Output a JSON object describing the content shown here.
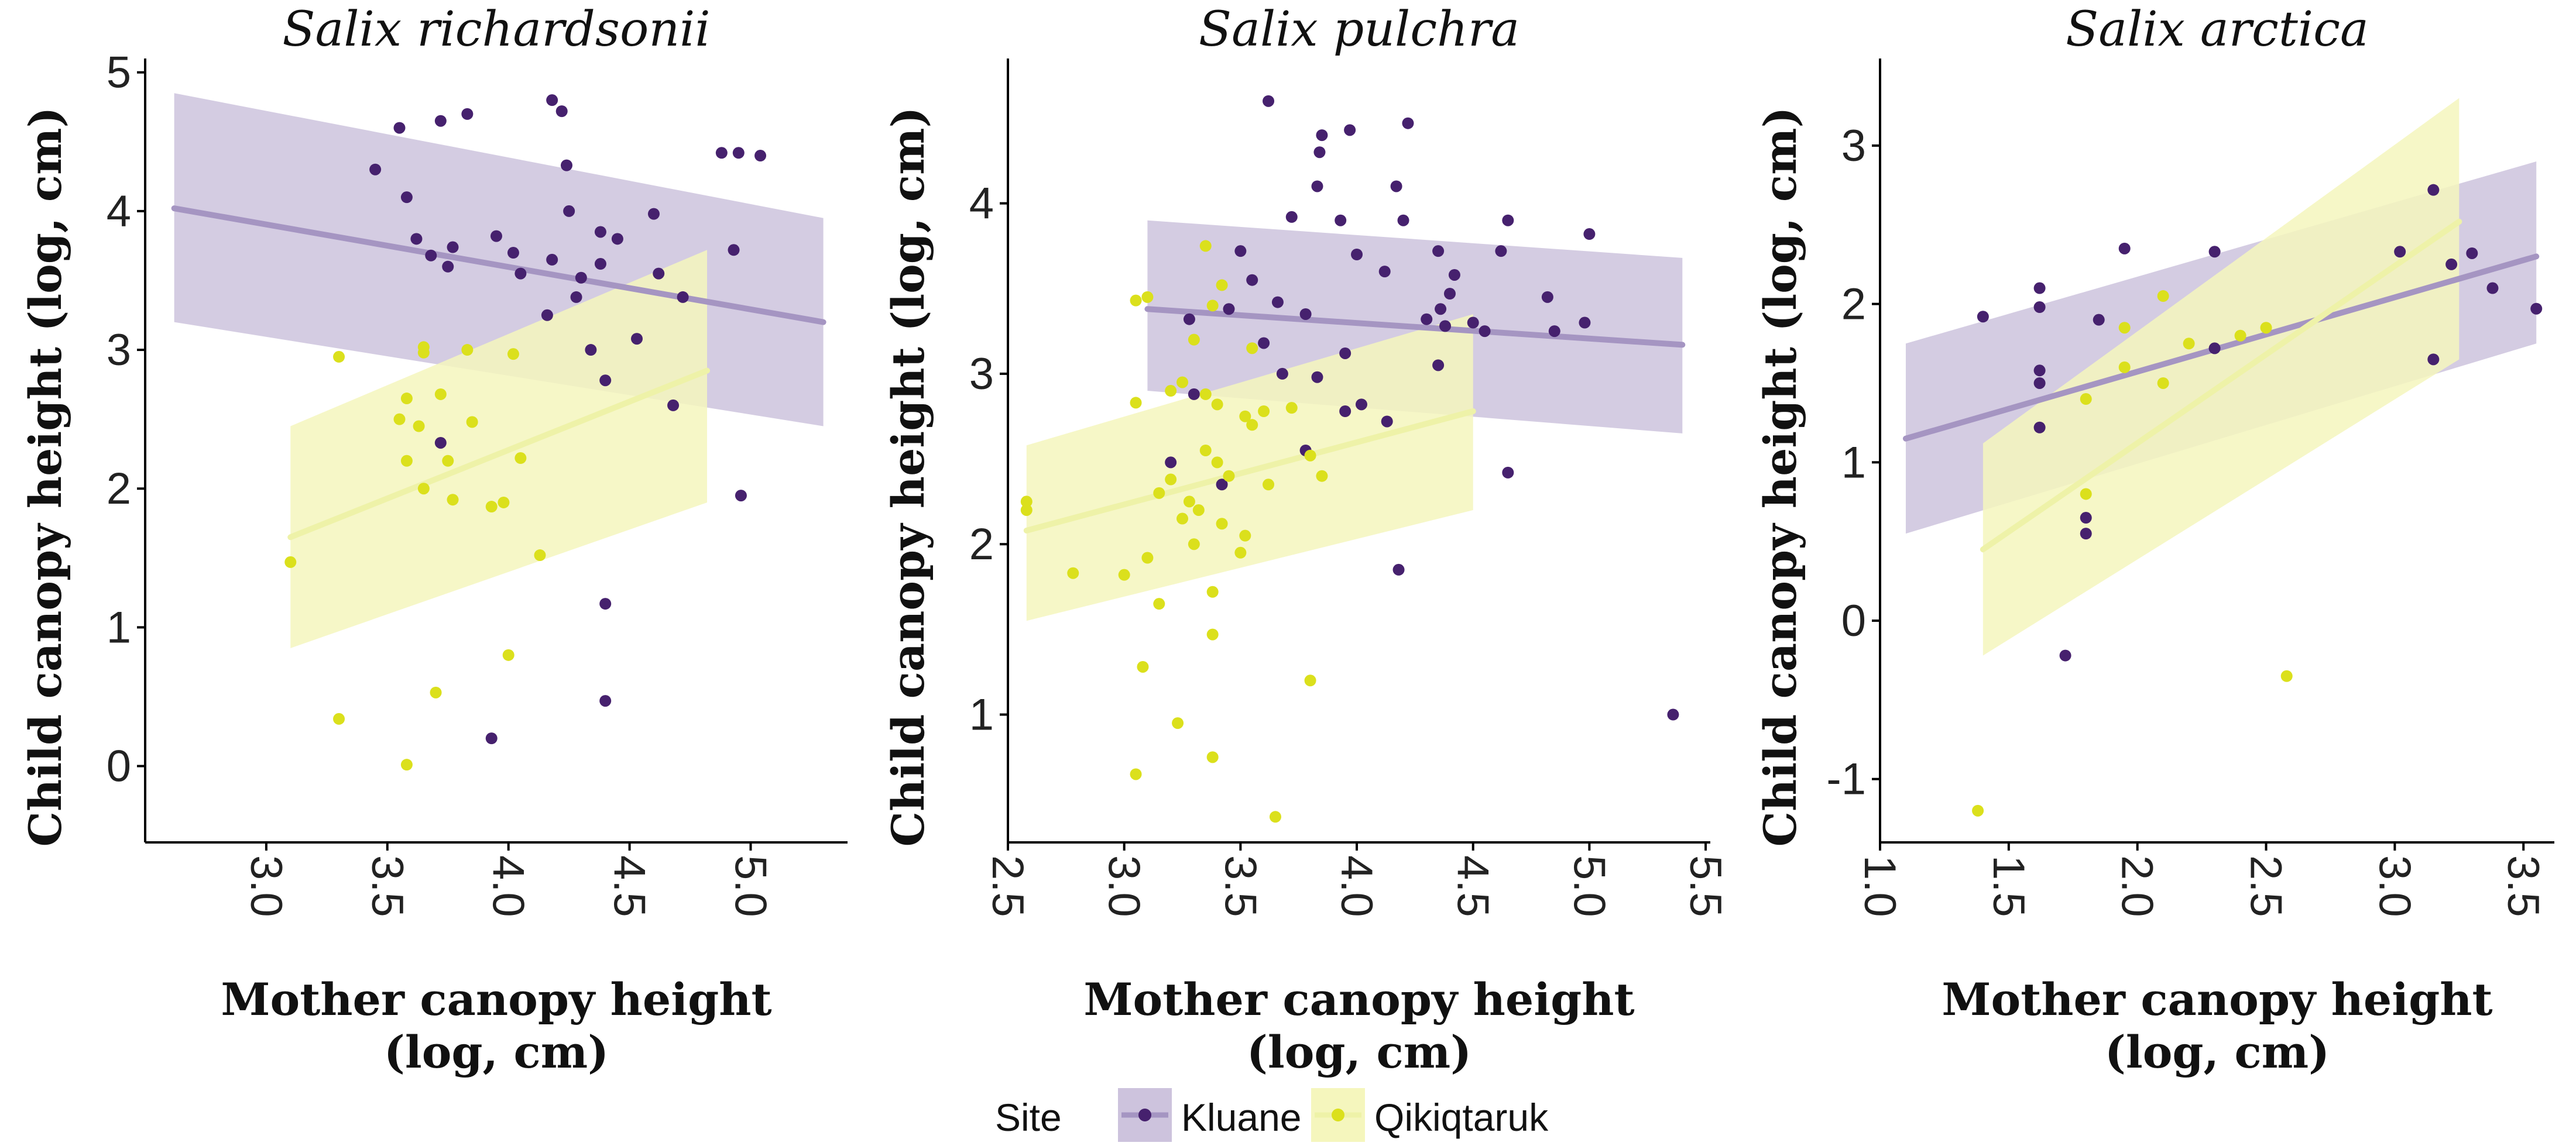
{
  "colors": {
    "Kluane": {
      "point": "#46216e",
      "line": "#a595c2",
      "band": "#cdc3dd"
    },
    "Qikiqtaruk": {
      "point": "#dbe01c",
      "line": "#eef2a8",
      "band": "#f5f6bd"
    },
    "axis": "#000000"
  },
  "legend": {
    "title": "Site",
    "entries": [
      "Kluane",
      "Qikiqtaruk"
    ],
    "placement": "bottom"
  },
  "chart_data": [
    {
      "type": "scatter",
      "title": "Salix richardsonii",
      "xlabel": "Mother canopy height\n(log, cm)",
      "ylabel": "Child canopy height (log, cm)",
      "xlim": [
        2.5,
        5.4
      ],
      "ylim": [
        -0.55,
        5.1
      ],
      "xticks": [
        "3.0",
        "3.5",
        "4.0",
        "4.5",
        "5.0"
      ],
      "yticks": [
        "0",
        "1",
        "2",
        "3",
        "4",
        "5"
      ],
      "series": [
        {
          "name": "Kluane",
          "points": [
            [
              3.55,
              4.6
            ],
            [
              3.72,
              4.65
            ],
            [
              3.83,
              4.7
            ],
            [
              4.18,
              4.8
            ],
            [
              4.22,
              4.72
            ],
            [
              3.45,
              4.3
            ],
            [
              4.24,
              4.33
            ],
            [
              3.58,
              4.1
            ],
            [
              4.95,
              4.42
            ],
            [
              4.88,
              4.42
            ],
            [
              5.04,
              4.4
            ],
            [
              3.95,
              3.82
            ],
            [
              4.25,
              4.0
            ],
            [
              4.45,
              3.8
            ],
            [
              3.62,
              3.8
            ],
            [
              3.77,
              3.74
            ],
            [
              4.38,
              3.62
            ],
            [
              4.02,
              3.7
            ],
            [
              4.18,
              3.65
            ],
            [
              3.68,
              3.68
            ],
            [
              3.75,
              3.6
            ],
            [
              4.05,
              3.55
            ],
            [
              4.3,
              3.52
            ],
            [
              4.62,
              3.55
            ],
            [
              4.38,
              3.85
            ],
            [
              4.6,
              3.98
            ],
            [
              4.93,
              3.72
            ],
            [
              4.72,
              3.38
            ],
            [
              4.28,
              3.38
            ],
            [
              4.16,
              3.25
            ],
            [
              4.53,
              3.08
            ],
            [
              4.34,
              3.0
            ],
            [
              4.4,
              2.78
            ],
            [
              4.68,
              2.6
            ],
            [
              3.72,
              2.33
            ],
            [
              4.96,
              1.95
            ],
            [
              4.4,
              1.17
            ],
            [
              4.4,
              0.47
            ],
            [
              3.93,
              0.2
            ]
          ],
          "fit_x": [
            2.62,
            5.3
          ],
          "fit_y": [
            4.02,
            3.2
          ],
          "ci_lower": [
            3.2,
            2.45
          ],
          "ci_upper": [
            4.85,
            3.95
          ]
        },
        {
          "name": "Qikiqtaruk",
          "points": [
            [
              3.1,
              1.47
            ],
            [
              3.3,
              2.95
            ],
            [
              3.65,
              2.98
            ],
            [
              3.65,
              3.02
            ],
            [
              3.83,
              3.0
            ],
            [
              4.02,
              2.97
            ],
            [
              3.58,
              2.65
            ],
            [
              3.72,
              2.68
            ],
            [
              3.55,
              2.5
            ],
            [
              3.63,
              2.45
            ],
            [
              3.58,
              2.2
            ],
            [
              3.75,
              2.2
            ],
            [
              3.85,
              2.48
            ],
            [
              4.05,
              2.22
            ],
            [
              3.65,
              2.0
            ],
            [
              3.77,
              1.92
            ],
            [
              3.93,
              1.87
            ],
            [
              3.98,
              1.9
            ],
            [
              4.13,
              1.52
            ],
            [
              4.0,
              0.8
            ],
            [
              3.7,
              0.53
            ],
            [
              3.3,
              0.34
            ],
            [
              3.58,
              0.01
            ]
          ],
          "fit_x": [
            3.1,
            4.82
          ],
          "fit_y": [
            1.65,
            2.85
          ],
          "ci_lower": [
            0.85,
            1.9
          ],
          "ci_upper": [
            2.45,
            3.72
          ]
        }
      ]
    },
    {
      "type": "scatter",
      "title": "Salix pulchra",
      "xlabel": "Mother canopy height\n(log, cm)",
      "ylabel": "Child canopy height (log, cm)",
      "xlim": [
        2.5,
        5.52
      ],
      "ylim": [
        0.25,
        4.85
      ],
      "xticks": [
        "2.5",
        "3.0",
        "3.5",
        "4.0",
        "4.5",
        "5.0",
        "5.5"
      ],
      "yticks": [
        "1",
        "2",
        "3",
        "4"
      ],
      "series": [
        {
          "name": "Kluane",
          "points": [
            [
              3.62,
              4.6
            ],
            [
              4.22,
              4.47
            ],
            [
              3.97,
              4.43
            ],
            [
              3.85,
              4.4
            ],
            [
              3.84,
              4.3
            ],
            [
              3.83,
              4.1
            ],
            [
              4.17,
              4.1
            ],
            [
              3.72,
              3.92
            ],
            [
              3.93,
              3.9
            ],
            [
              4.2,
              3.9
            ],
            [
              4.65,
              3.9
            ],
            [
              4.35,
              3.72
            ],
            [
              3.5,
              3.72
            ],
            [
              5.0,
              3.82
            ],
            [
              4.42,
              3.58
            ],
            [
              3.55,
              3.55
            ],
            [
              4.0,
              3.7
            ],
            [
              4.4,
              3.47
            ],
            [
              4.12,
              3.6
            ],
            [
              4.82,
              3.45
            ],
            [
              4.62,
              3.72
            ],
            [
              3.66,
              3.42
            ],
            [
              4.36,
              3.38
            ],
            [
              3.78,
              3.35
            ],
            [
              3.45,
              3.38
            ],
            [
              4.3,
              3.32
            ],
            [
              4.5,
              3.3
            ],
            [
              4.98,
              3.3
            ],
            [
              4.85,
              3.25
            ],
            [
              3.28,
              3.32
            ],
            [
              3.6,
              3.18
            ],
            [
              4.38,
              3.28
            ],
            [
              4.55,
              3.25
            ],
            [
              3.95,
              3.12
            ],
            [
              3.83,
              2.98
            ],
            [
              4.35,
              3.05
            ],
            [
              3.68,
              3.0
            ],
            [
              4.02,
              2.82
            ],
            [
              3.95,
              2.78
            ],
            [
              3.3,
              2.88
            ],
            [
              4.13,
              2.72
            ],
            [
              3.2,
              2.48
            ],
            [
              3.78,
              2.55
            ],
            [
              3.42,
              2.35
            ],
            [
              4.65,
              2.42
            ],
            [
              4.18,
              1.85
            ],
            [
              5.36,
              1.0
            ]
          ],
          "fit_x": [
            3.1,
            5.4
          ],
          "fit_y": [
            3.38,
            3.17
          ],
          "ci_lower": [
            2.9,
            2.65
          ],
          "ci_upper": [
            3.9,
            3.68
          ]
        },
        {
          "name": "Qikiqtaruk",
          "points": [
            [
              3.05,
              3.43
            ],
            [
              3.1,
              3.45
            ],
            [
              3.35,
              3.75
            ],
            [
              3.42,
              3.52
            ],
            [
              3.38,
              3.4
            ],
            [
              3.3,
              3.2
            ],
            [
              3.25,
              2.95
            ],
            [
              3.55,
              3.15
            ],
            [
              3.05,
              2.83
            ],
            [
              3.2,
              2.9
            ],
            [
              3.35,
              2.88
            ],
            [
              3.4,
              2.82
            ],
            [
              3.52,
              2.75
            ],
            [
              3.72,
              2.8
            ],
            [
              3.6,
              2.78
            ],
            [
              3.35,
              2.55
            ],
            [
              3.4,
              2.48
            ],
            [
              3.55,
              2.7
            ],
            [
              3.8,
              2.52
            ],
            [
              3.85,
              2.4
            ],
            [
              3.2,
              2.38
            ],
            [
              3.15,
              2.3
            ],
            [
              3.28,
              2.25
            ],
            [
              3.32,
              2.2
            ],
            [
              3.45,
              2.4
            ],
            [
              3.62,
              2.35
            ],
            [
              3.42,
              2.12
            ],
            [
              3.52,
              2.05
            ],
            [
              3.3,
              2.0
            ],
            [
              3.5,
              1.95
            ],
            [
              3.25,
              2.15
            ],
            [
              3.1,
              1.92
            ],
            [
              2.58,
              2.2
            ],
            [
              2.58,
              2.25
            ],
            [
              2.78,
              1.83
            ],
            [
              3.0,
              1.82
            ],
            [
              3.15,
              1.65
            ],
            [
              3.38,
              1.72
            ],
            [
              3.38,
              1.47
            ],
            [
              3.08,
              1.28
            ],
            [
              3.8,
              1.2
            ],
            [
              3.23,
              0.95
            ],
            [
              3.38,
              0.75
            ],
            [
              3.05,
              0.65
            ],
            [
              3.65,
              0.4
            ]
          ],
          "fit_x": [
            2.58,
            4.5
          ],
          "fit_y": [
            2.08,
            2.78
          ],
          "ci_lower": [
            1.55,
            2.2
          ],
          "ci_upper": [
            2.58,
            3.35
          ]
        }
      ]
    },
    {
      "type": "scatter",
      "title": "Salix arctica",
      "xlabel": "Mother canopy height\n(log, cm)",
      "ylabel": "Child canopy height (log, cm)",
      "xlim": [
        1.0,
        3.62
      ],
      "ylim": [
        -1.4,
        3.55
      ],
      "xticks": [
        "1.0",
        "1.5",
        "2.0",
        "2.5",
        "3.0",
        "3.5"
      ],
      "yticks": [
        "-1",
        "0",
        "1",
        "2",
        "3"
      ],
      "series": [
        {
          "name": "Kluane",
          "points": [
            [
              1.4,
              1.92
            ],
            [
              1.62,
              2.1
            ],
            [
              1.62,
              1.98
            ],
            [
              1.95,
              2.35
            ],
            [
              2.3,
              2.33
            ],
            [
              3.15,
              2.72
            ],
            [
              3.02,
              2.33
            ],
            [
              3.22,
              2.25
            ],
            [
              3.3,
              2.32
            ],
            [
              3.38,
              2.1
            ],
            [
              3.55,
              1.97
            ],
            [
              1.85,
              1.9
            ],
            [
              1.62,
              1.58
            ],
            [
              1.62,
              1.5
            ],
            [
              1.62,
              1.22
            ],
            [
              2.3,
              1.72
            ],
            [
              3.15,
              1.65
            ],
            [
              1.8,
              0.65
            ],
            [
              1.8,
              0.55
            ],
            [
              1.72,
              -0.22
            ]
          ],
          "fit_x": [
            1.1,
            3.55
          ],
          "fit_y": [
            1.15,
            2.3
          ],
          "ci_lower": [
            0.55,
            1.75
          ],
          "ci_upper": [
            1.75,
            2.9
          ]
        },
        {
          "name": "Qikiqtaruk",
          "points": [
            [
              2.1,
              2.05
            ],
            [
              1.95,
              1.85
            ],
            [
              2.2,
              1.75
            ],
            [
              2.5,
              1.85
            ],
            [
              2.4,
              1.8
            ],
            [
              1.95,
              1.6
            ],
            [
              2.1,
              1.5
            ],
            [
              1.8,
              1.4
            ],
            [
              1.8,
              0.8
            ],
            [
              2.58,
              -0.35
            ],
            [
              1.38,
              -1.2
            ]
          ],
          "fit_x": [
            1.4,
            3.25
          ],
          "fit_y": [
            0.45,
            2.52
          ],
          "ci_lower": [
            -0.22,
            1.65
          ],
          "ci_upper": [
            1.12,
            3.3
          ]
        }
      ]
    }
  ]
}
